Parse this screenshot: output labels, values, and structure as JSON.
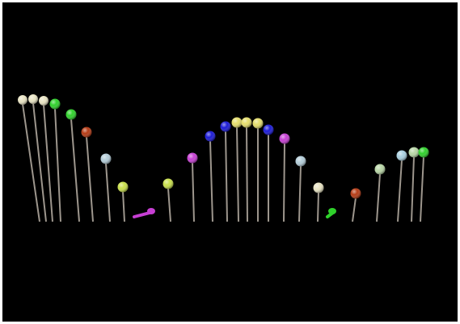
{
  "scene": {
    "background": "#000000",
    "stem_color": "#b8b0a6",
    "palette": {
      "cream": "#e8e3c2",
      "green": "#2fd12b",
      "rust": "#b53a14",
      "pale-blue": "#b3ccd8",
      "yellow-green": "#c9e04a",
      "magenta": "#c63fd3",
      "blue": "#1b1ad6",
      "yellow": "#e5de6c",
      "sage": "#b8d6a6",
      "light-cyan": "#a9d0e0"
    },
    "pins": [
      {
        "color": "cream"
      },
      {
        "color": "cream"
      },
      {
        "color": "cream"
      },
      {
        "color": "green"
      },
      {
        "color": "green"
      },
      {
        "color": "rust"
      },
      {
        "color": "pale-blue"
      },
      {
        "color": "yellow-green"
      },
      {
        "color": "magenta",
        "fallen": true
      },
      {
        "color": "yellow-green"
      },
      {
        "color": "magenta"
      },
      {
        "color": "blue"
      },
      {
        "color": "blue"
      },
      {
        "color": "yellow"
      },
      {
        "color": "yellow"
      },
      {
        "color": "yellow"
      },
      {
        "color": "blue"
      },
      {
        "color": "magenta"
      },
      {
        "color": "pale-blue"
      },
      {
        "color": "cream"
      },
      {
        "color": "green",
        "fallen": true
      },
      {
        "color": "rust"
      },
      {
        "color": "sage"
      },
      {
        "color": "light-cyan"
      },
      {
        "color": "sage"
      },
      {
        "color": "green"
      }
    ]
  }
}
